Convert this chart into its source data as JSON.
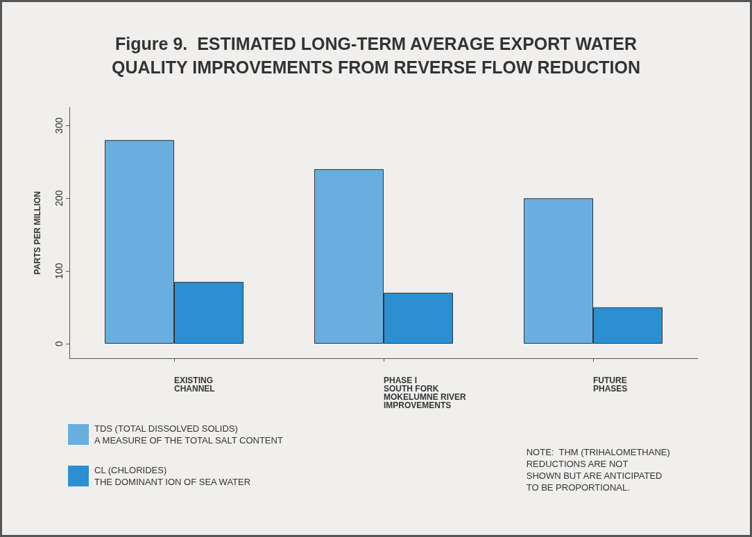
{
  "chart_data": {
    "type": "bar",
    "title": "Figure 9.  ESTIMATED LONG-TERM AVERAGE EXPORT WATER\nQUALITY IMPROVEMENTS FROM REVERSE FLOW REDUCTION",
    "ylabel": "PARTS PER MILLION",
    "categories": [
      "EXISTING\nCHANNEL",
      "PHASE I\nSOUTH FORK\nMOKELUMNE RIVER\nIMPROVEMENTS",
      "FUTURE\nPHASES"
    ],
    "series": [
      {
        "name": "TDS (TOTAL DISSOLVED SOLIDS)\nA MEASURE OF THE TOTAL SALT CONTENT",
        "color": "#6aaee0",
        "values": [
          280,
          240,
          200
        ]
      },
      {
        "name": "CL (CHLORIDES)\nTHE DOMINANT ION OF SEA WATER",
        "color": "#2b8fd2",
        "values": [
          85,
          70,
          50
        ]
      }
    ],
    "ylim": [
      -20,
      325
    ],
    "yticks": [
      0,
      100,
      200,
      300
    ],
    "grid": false,
    "legend": "bottom left",
    "annotations": [
      "NOTE:  THM (TRIHALOMETHANE)\nREDUCTIONS ARE NOT\nSHOWN BUT ARE ANTICIPATED\nTO BE PROPORTIONAL."
    ]
  }
}
